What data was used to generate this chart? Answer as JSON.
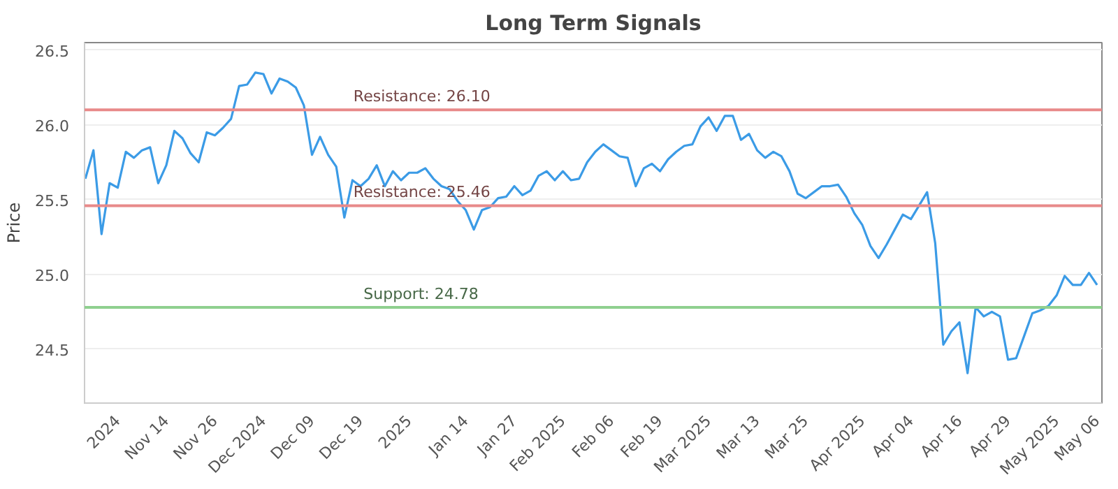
{
  "chart_data": {
    "type": "line",
    "title": "Long Term Signals",
    "ylabel": "Price",
    "categories": [
      null,
      null,
      null,
      null,
      "2024",
      null,
      null,
      null,
      null,
      null,
      "Nov 14",
      null,
      null,
      null,
      null,
      null,
      "Nov 26",
      null,
      null,
      null,
      null,
      null,
      "Dec 2024",
      null,
      null,
      null,
      null,
      null,
      "Dec 09",
      null,
      null,
      null,
      null,
      null,
      "Dec 19",
      null,
      null,
      null,
      null,
      null,
      "2025",
      null,
      null,
      null,
      null,
      null,
      null,
      "Jan 14",
      null,
      null,
      null,
      null,
      null,
      "Jan 27",
      null,
      null,
      null,
      null,
      null,
      "Feb 2025",
      null,
      null,
      null,
      null,
      null,
      "Feb 06",
      null,
      null,
      null,
      null,
      null,
      "Feb 19",
      null,
      null,
      null,
      null,
      null,
      "Mar 2025",
      null,
      null,
      null,
      null,
      null,
      "Mar 13",
      null,
      null,
      null,
      null,
      null,
      "Mar 25",
      null,
      null,
      null,
      null,
      null,
      null,
      "Apr 2025",
      null,
      null,
      null,
      null,
      null,
      "Apr 04",
      null,
      null,
      null,
      null,
      null,
      "Apr 16",
      null,
      null,
      null,
      null,
      null,
      "Apr 29",
      null,
      null,
      null,
      null,
      null,
      "May 2025",
      null,
      null,
      null,
      null,
      "May 06"
    ],
    "series": [
      {
        "color": "#3b9be6",
        "values": [
          25.64,
          25.83,
          25.27,
          25.61,
          25.58,
          25.82,
          25.78,
          25.83,
          25.85,
          25.61,
          25.73,
          25.96,
          25.91,
          25.81,
          25.75,
          25.95,
          25.93,
          25.98,
          26.04,
          26.26,
          26.27,
          26.35,
          26.34,
          26.21,
          26.31,
          26.29,
          26.25,
          26.13,
          25.8,
          25.92,
          25.8,
          25.72,
          25.38,
          25.63,
          25.59,
          25.64,
          25.73,
          25.59,
          25.69,
          25.63,
          25.68,
          25.68,
          25.71,
          25.64,
          25.59,
          25.57,
          25.49,
          25.43,
          25.3,
          25.43,
          25.45,
          25.51,
          25.52,
          25.59,
          25.53,
          25.56,
          25.66,
          25.69,
          25.63,
          25.69,
          25.63,
          25.64,
          25.75,
          25.82,
          25.87,
          25.83,
          25.79,
          25.78,
          25.59,
          25.71,
          25.74,
          25.69,
          25.77,
          25.82,
          25.86,
          25.87,
          25.99,
          26.05,
          25.96,
          26.06,
          26.06,
          25.9,
          25.94,
          25.83,
          25.78,
          25.82,
          25.79,
          25.69,
          25.54,
          25.51,
          25.55,
          25.59,
          25.59,
          25.6,
          25.52,
          25.41,
          25.33,
          25.19,
          25.11,
          25.2,
          25.3,
          25.4,
          25.37,
          25.46,
          25.55,
          25.21,
          24.53,
          24.62,
          24.68,
          24.34,
          24.78,
          24.72,
          24.75,
          24.72,
          24.43,
          24.44,
          24.59,
          24.74,
          24.76,
          24.79,
          24.86,
          24.99,
          24.93,
          24.93,
          25.01,
          24.93
        ]
      }
    ],
    "ylim": [
      24.14,
      26.55
    ],
    "yticks": [
      24.5,
      {
        "value": 25,
        "label": "25.0"
      },
      25.5,
      {
        "value": 26,
        "label": "26.0"
      },
      26.5
    ],
    "grid": "y",
    "marker": "none",
    "line_style": "solid",
    "ref_lines": [
      {
        "axis": "y",
        "value": 26.1,
        "label": "Resistance: 26.10",
        "color": "#e88a8a"
      },
      {
        "axis": "y",
        "value": 25.46,
        "label": "Resistance: 25.46",
        "color": "#e88a8a"
      },
      {
        "axis": "y",
        "value": 24.78,
        "label": "Support: 24.78",
        "color": "#8fd08f"
      }
    ]
  }
}
